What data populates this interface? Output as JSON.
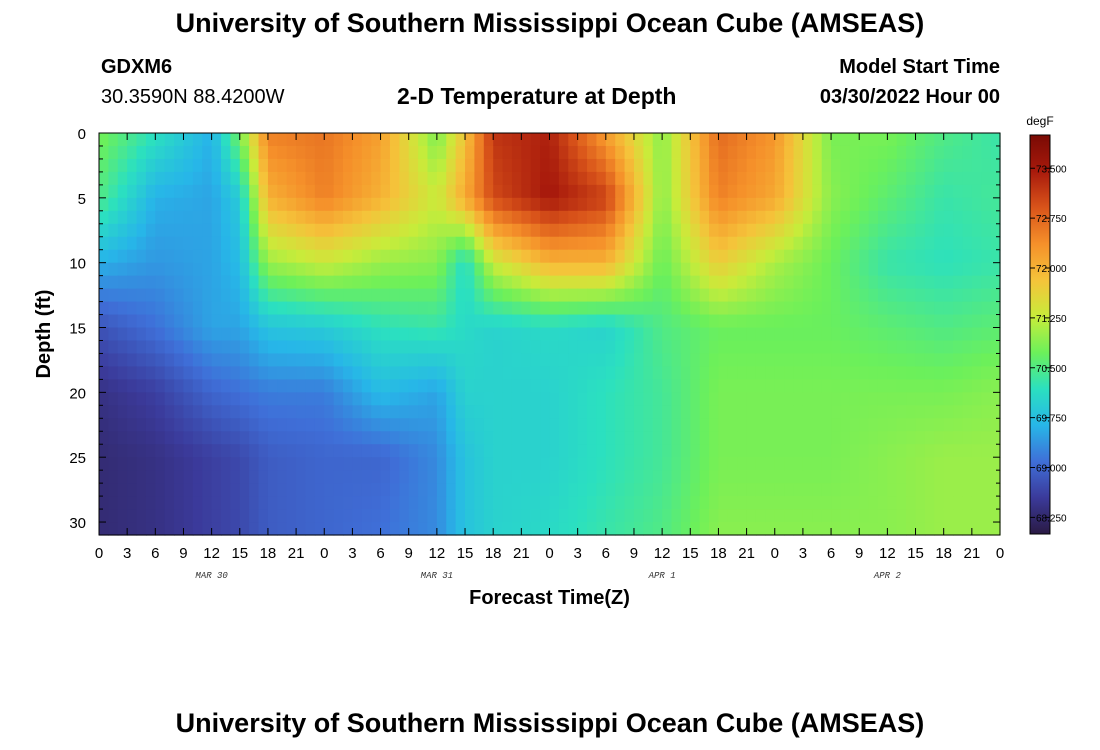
{
  "header": {
    "title": "University of Southern Mississippi Ocean Cube (AMSEAS)",
    "station": "GDXM6",
    "coords": "30.3590N  88.4200W",
    "subtitle": "2-D Temperature at Depth",
    "start_label": "Model Start Time",
    "start_value": "03/30/2022 Hour 00"
  },
  "footer": {
    "title": "University of Southern Mississippi Ocean Cube (AMSEAS)"
  },
  "chart_data": {
    "type": "heatmap",
    "title": "2-D Temperature at Depth",
    "xlabel": "Forecast Time(Z)",
    "ylabel": "Depth (ft)",
    "x_tick_labels": [
      "0",
      "3",
      "6",
      "9",
      "12",
      "15",
      "18",
      "21",
      "0",
      "3",
      "6",
      "9",
      "12",
      "15",
      "18",
      "21",
      "0",
      "3",
      "6",
      "9",
      "12",
      "15",
      "18",
      "21",
      "0",
      "3",
      "6",
      "9",
      "12",
      "15",
      "18",
      "21",
      "0"
    ],
    "date_labels": [
      {
        "label": "MAR 30",
        "hour": 12
      },
      {
        "label": "MAR 31",
        "hour": 36
      },
      {
        "label": "APR 1",
        "hour": 60
      },
      {
        "label": "APR 2",
        "hour": 84
      }
    ],
    "xlim": [
      0,
      96
    ],
    "ylim": [
      0,
      31
    ],
    "y_ticks": [
      0,
      5,
      10,
      15,
      20,
      25,
      30
    ],
    "y_inverted": true,
    "colorbar": {
      "unit": "degF",
      "ticks": [
        "73.500",
        "72.750",
        "72.000",
        "71.250",
        "70.500",
        "69.750",
        "69.000",
        "68.250"
      ],
      "range": [
        68.0,
        74.0
      ],
      "colors": [
        "#2a1a44",
        "#3b3a9a",
        "#3f6fd8",
        "#27b6e8",
        "#2be0c0",
        "#6cf05a",
        "#c8ec3a",
        "#f5c33a",
        "#f5902a",
        "#d9541a",
        "#a81a0c",
        "#7a0a04"
      ]
    },
    "depths_ft": [
      0,
      5,
      10,
      15,
      20,
      25,
      31
    ],
    "hours": [
      0,
      6,
      12,
      15,
      18,
      24,
      30,
      36,
      39,
      42,
      48,
      54,
      60,
      66,
      72,
      78,
      84,
      90,
      96
    ],
    "temperatures_degF": [
      [
        70.8,
        70.2,
        69.6,
        70.8,
        72.5,
        72.6,
        72.2,
        70.8,
        71.8,
        73.2,
        73.4,
        72.2,
        70.9,
        72.7,
        72.3,
        70.8,
        70.8,
        70.5,
        70.3
      ],
      [
        70.5,
        69.6,
        69.5,
        69.9,
        72.0,
        72.5,
        72.0,
        71.3,
        72.1,
        73.0,
        73.5,
        73.1,
        70.9,
        72.5,
        72.1,
        70.9,
        70.6,
        70.3,
        70.4
      ],
      [
        69.6,
        69.4,
        69.5,
        69.7,
        71.0,
        71.3,
        71.0,
        70.9,
        70.1,
        71.3,
        72.0,
        72.0,
        70.7,
        71.7,
        71.1,
        70.7,
        70.3,
        70.2,
        70.3
      ],
      [
        68.8,
        69.1,
        69.5,
        69.5,
        69.8,
        69.9,
        70.2,
        70.3,
        70.1,
        70.0,
        70.1,
        70.0,
        70.5,
        70.7,
        70.7,
        70.7,
        70.6,
        70.5,
        70.6
      ],
      [
        68.4,
        68.6,
        69.0,
        69.1,
        69.2,
        69.2,
        69.7,
        69.5,
        70.0,
        70.0,
        70.0,
        70.2,
        70.4,
        70.8,
        70.8,
        70.8,
        70.8,
        70.8,
        70.9
      ],
      [
        68.3,
        68.4,
        68.6,
        68.7,
        68.9,
        69.0,
        69.0,
        69.3,
        69.8,
        70.0,
        70.0,
        70.2,
        70.4,
        70.8,
        70.8,
        70.8,
        70.9,
        71.0,
        71.0
      ],
      [
        68.3,
        68.4,
        68.6,
        68.7,
        68.9,
        69.0,
        69.1,
        69.3,
        69.8,
        70.0,
        70.1,
        70.3,
        70.5,
        70.9,
        70.9,
        70.9,
        70.9,
        71.0,
        71.0
      ]
    ]
  }
}
